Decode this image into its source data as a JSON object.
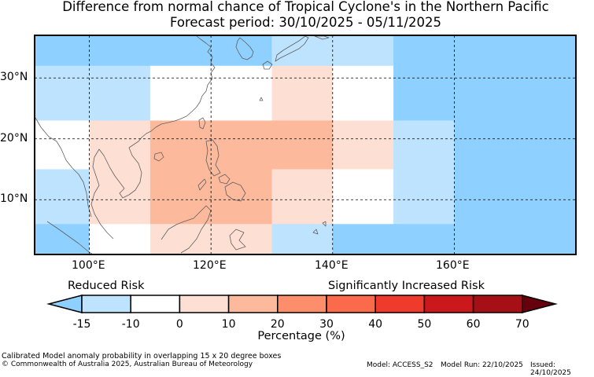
{
  "title_line1": "Difference from normal chance of Tropical Cyclone's in the Northern Pacific",
  "title_line2": "Forecast period: 30/10/2025 - 05/11/2025",
  "map": {
    "lon_range": [
      91,
      180
    ],
    "lat_range": [
      1,
      37
    ],
    "lon_ticks": [
      "100°E",
      "120°E",
      "140°E",
      "160°E"
    ],
    "lat_ticks": [
      "10°N",
      "20°N",
      "30°N"
    ],
    "colors": {
      "-15": "#8ed0ff",
      "-10": "#bde3ff",
      "0": "#ffffff",
      "10": "#fde0d3",
      "20": "#fcb99b"
    },
    "cells": [
      {
        "lon": [
          91,
          130
        ],
        "lat": [
          32,
          37
        ],
        "value": -15
      },
      {
        "lon": [
          130,
          140
        ],
        "lat": [
          32,
          37
        ],
        "value": -10
      },
      {
        "lon": [
          140,
          150
        ],
        "lat": [
          32,
          37
        ],
        "value": -10
      },
      {
        "lon": [
          150,
          180
        ],
        "lat": [
          32,
          37
        ],
        "value": -15
      },
      {
        "lon": [
          91,
          110
        ],
        "lat": [
          23,
          32
        ],
        "value": -10
      },
      {
        "lon": [
          110,
          130
        ],
        "lat": [
          23,
          32
        ],
        "value": 0
      },
      {
        "lon": [
          130,
          140
        ],
        "lat": [
          23,
          32
        ],
        "value": 10
      },
      {
        "lon": [
          140,
          150
        ],
        "lat": [
          23,
          32
        ],
        "value": 0
      },
      {
        "lon": [
          150,
          180
        ],
        "lat": [
          23,
          32
        ],
        "value": -15
      },
      {
        "lon": [
          91,
          100
        ],
        "lat": [
          15,
          23
        ],
        "value": 0
      },
      {
        "lon": [
          100,
          110
        ],
        "lat": [
          15,
          23
        ],
        "value": 10
      },
      {
        "lon": [
          110,
          140
        ],
        "lat": [
          15,
          23
        ],
        "value": 20
      },
      {
        "lon": [
          140,
          150
        ],
        "lat": [
          15,
          23
        ],
        "value": 10
      },
      {
        "lon": [
          150,
          160
        ],
        "lat": [
          15,
          23
        ],
        "value": -10
      },
      {
        "lon": [
          160,
          180
        ],
        "lat": [
          15,
          23
        ],
        "value": -15
      },
      {
        "lon": [
          91,
          100
        ],
        "lat": [
          6,
          15
        ],
        "value": -10
      },
      {
        "lon": [
          100,
          110
        ],
        "lat": [
          6,
          15
        ],
        "value": 10
      },
      {
        "lon": [
          110,
          130
        ],
        "lat": [
          6,
          15
        ],
        "value": 20
      },
      {
        "lon": [
          130,
          140
        ],
        "lat": [
          6,
          15
        ],
        "value": 10
      },
      {
        "lon": [
          140,
          150
        ],
        "lat": [
          6,
          15
        ],
        "value": 0
      },
      {
        "lon": [
          150,
          160
        ],
        "lat": [
          6,
          15
        ],
        "value": -10
      },
      {
        "lon": [
          160,
          180
        ],
        "lat": [
          6,
          15
        ],
        "value": -15
      },
      {
        "lon": [
          91,
          100
        ],
        "lat": [
          1,
          6
        ],
        "value": -15
      },
      {
        "lon": [
          100,
          110
        ],
        "lat": [
          1,
          6
        ],
        "value": 0
      },
      {
        "lon": [
          110,
          130
        ],
        "lat": [
          1,
          6
        ],
        "value": 10
      },
      {
        "lon": [
          130,
          140
        ],
        "lat": [
          1,
          6
        ],
        "value": -10
      },
      {
        "lon": [
          140,
          180
        ],
        "lat": [
          1,
          6
        ],
        "value": -15
      }
    ]
  },
  "legend": {
    "reduced_label": "Reduced Risk",
    "increased_label": "Significantly Increased Risk",
    "ticks": [
      "-15",
      "-10",
      "0",
      "10",
      "20",
      "30",
      "40",
      "50",
      "60",
      "70"
    ],
    "colors": [
      "#bde3ff",
      "#ffffff",
      "#fde0d3",
      "#fcb99b",
      "#fc8e6b",
      "#fb6a4a",
      "#ef3b2c",
      "#cb181d",
      "#a50f15"
    ],
    "under_color": "#8ed0ff",
    "over_color": "#67000d",
    "axis_label": "Percentage (%)"
  },
  "footer": {
    "line1": "Calibrated Model anomaly probability in overlapping 15 x 20 degree boxes",
    "line2": "© Commonwealth of Australia 2025, Australian Bureau of Meteorology",
    "model": "Model: ACCESS_S2",
    "run": "Model Run: 22/10/2025",
    "issued": "Issued: 24/10/2025"
  }
}
